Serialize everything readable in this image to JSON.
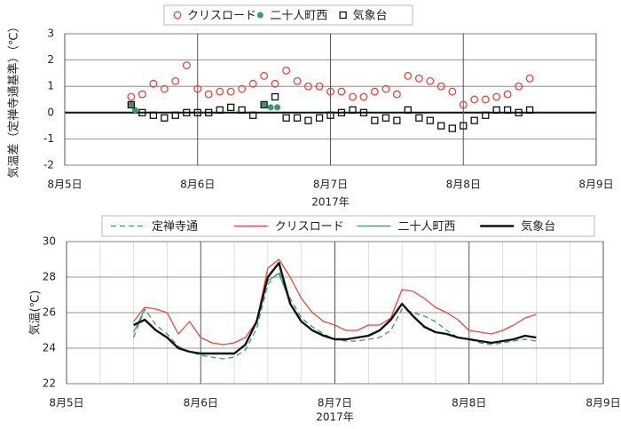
{
  "chart_data": [
    {
      "type": "scatter",
      "y_label": "気温差（定禅寺通基準）（℃）",
      "x_label": "2017年",
      "xlim": [
        5,
        9
      ],
      "ylim": [
        -2,
        3
      ],
      "xticks": [
        {
          "value": 5,
          "label": "8月5日"
        },
        {
          "value": 6,
          "label": "8月6日"
        },
        {
          "value": 7,
          "label": "8月7日"
        },
        {
          "value": 8,
          "label": "8月8日"
        },
        {
          "value": 9,
          "label": "8月9日"
        }
      ],
      "yticks": [
        -2,
        -1,
        0,
        1,
        2,
        3
      ],
      "grid": true,
      "x": [
        5.5,
        5.583,
        5.667,
        5.75,
        5.833,
        5.917,
        6,
        6.083,
        6.167,
        6.25,
        6.333,
        6.417,
        6.5,
        6.583,
        6.667,
        6.75,
        6.833,
        6.917,
        7,
        7.083,
        7.167,
        7.25,
        7.333,
        7.417,
        7.5,
        7.583,
        7.667,
        7.75,
        7.833,
        7.917,
        8,
        8.083,
        8.167,
        8.25,
        8.333,
        8.417,
        8.5
      ],
      "series": [
        {
          "name": "クリスロード",
          "color": "#e8443a",
          "marker": "circle-open",
          "values": [
            0.6,
            0.7,
            1.1,
            0.9,
            1.2,
            1.8,
            0.9,
            0.7,
            0.8,
            0.8,
            0.9,
            1.1,
            1.4,
            1.1,
            1.6,
            1.2,
            1.0,
            1.0,
            0.8,
            0.8,
            0.6,
            0.6,
            0.8,
            0.9,
            0.7,
            1.4,
            1.3,
            1.2,
            1.0,
            0.8,
            0.3,
            0.5,
            0.5,
            0.6,
            0.7,
            1.0,
            1.3
          ]
        },
        {
          "name": "二十人町西",
          "color": "#3a9a6a",
          "marker": "circle",
          "x": [
            5.5,
            5.53,
            6.5,
            6.55,
            6.6
          ],
          "values": [
            0.3,
            0.1,
            0.3,
            0.2,
            0.2
          ]
        },
        {
          "name": "気象台",
          "color": "#111111",
          "marker": "square-open",
          "values": [
            0.3,
            0.0,
            -0.1,
            -0.2,
            -0.1,
            0.0,
            0.0,
            0.0,
            0.1,
            0.2,
            0.1,
            -0.1,
            0.3,
            0.6,
            -0.2,
            -0.2,
            -0.3,
            -0.2,
            -0.1,
            0.0,
            0.1,
            0.0,
            -0.3,
            -0.2,
            -0.3,
            0.1,
            -0.2,
            -0.3,
            -0.5,
            -0.6,
            -0.5,
            -0.3,
            -0.1,
            0.1,
            0.1,
            0.0,
            0.1
          ]
        }
      ]
    },
    {
      "type": "line",
      "y_label": "気温(℃)",
      "x_label": "2017年",
      "xlim": [
        5,
        9
      ],
      "ylim": [
        22,
        30
      ],
      "xticks": [
        {
          "value": 5,
          "label": "8月5日"
        },
        {
          "value": 6,
          "label": "8月6日"
        },
        {
          "value": 7,
          "label": "8月7日"
        },
        {
          "value": 8,
          "label": "8月8日"
        },
        {
          "value": 9,
          "label": "8月9日"
        }
      ],
      "yticks": [
        22,
        24,
        26,
        28,
        30
      ],
      "grid": true,
      "x": [
        5.5,
        5.583,
        5.667,
        5.75,
        5.833,
        5.917,
        6,
        6.083,
        6.167,
        6.25,
        6.333,
        6.417,
        6.5,
        6.583,
        6.667,
        6.75,
        6.833,
        6.917,
        7,
        7.083,
        7.167,
        7.25,
        7.333,
        7.417,
        7.5,
        7.583,
        7.667,
        7.75,
        7.833,
        7.917,
        8,
        8.083,
        8.167,
        8.25,
        8.333,
        8.417,
        8.5
      ],
      "series": [
        {
          "name": "定禅寺通",
          "color": "#3a9a6a",
          "style": "dashed",
          "values": [
            24.6,
            26.2,
            25.3,
            24.8,
            24.1,
            23.8,
            23.6,
            23.5,
            23.4,
            23.5,
            23.9,
            25.1,
            27.6,
            28.3,
            26.8,
            25.7,
            25.2,
            24.8,
            24.5,
            24.4,
            24.4,
            24.5,
            24.6,
            25.0,
            26.2,
            26.0,
            25.8,
            25.5,
            25.0,
            24.6,
            24.5,
            24.3,
            24.2,
            24.3,
            24.4,
            24.5,
            24.4
          ]
        },
        {
          "name": "クリスロード",
          "color": "#e8443a",
          "style": "solid",
          "values": [
            25.5,
            26.3,
            26.2,
            26.0,
            24.8,
            25.5,
            24.6,
            24.3,
            24.2,
            24.3,
            24.6,
            25.5,
            28.5,
            29.0,
            28.0,
            26.8,
            26.0,
            25.5,
            25.3,
            25.0,
            25.0,
            25.3,
            25.3,
            25.7,
            27.3,
            27.2,
            26.8,
            26.3,
            26.0,
            25.6,
            25.0,
            24.9,
            24.8,
            25.0,
            25.3,
            25.7,
            25.9
          ]
        },
        {
          "name": "二十人町西",
          "color": "#3a9a6a",
          "style": "solid",
          "x": [
            5.5,
            5.583,
            6.0,
            6.5,
            6.583,
            6.667
          ],
          "values": [
            24.9,
            26.2,
            null,
            27.8,
            28.2,
            26.6
          ]
        },
        {
          "name": "気象台",
          "color": "#111111",
          "style": "bold",
          "values": [
            25.3,
            25.6,
            25.0,
            24.6,
            24.0,
            23.8,
            23.7,
            23.7,
            23.7,
            23.7,
            24.2,
            25.5,
            28.0,
            28.8,
            26.5,
            25.5,
            25.0,
            24.7,
            24.5,
            24.5,
            24.6,
            24.7,
            25.0,
            25.6,
            26.5,
            25.8,
            25.2,
            24.9,
            24.8,
            24.6,
            24.5,
            24.4,
            24.3,
            24.4,
            24.5,
            24.7,
            24.6
          ]
        }
      ]
    }
  ]
}
